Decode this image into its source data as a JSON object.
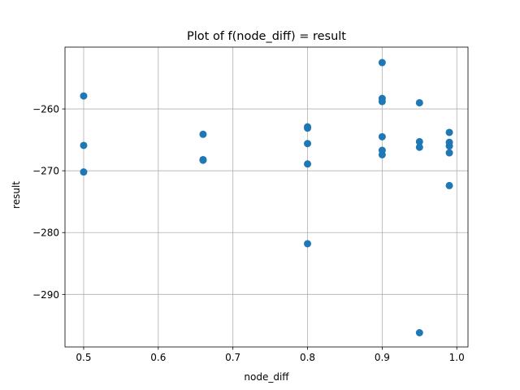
{
  "chart_data": {
    "type": "scatter",
    "title": "Plot of f(node_diff) = result",
    "xlabel": "node_diff",
    "ylabel": "result",
    "xlim": [
      0.475,
      1.015
    ],
    "ylim": [
      -298.5,
      -250.0
    ],
    "xticks": [
      0.5,
      0.6,
      0.7,
      0.8,
      0.9,
      1.0
    ],
    "xtick_labels": [
      "0.5",
      "0.6",
      "0.7",
      "0.8",
      "0.9",
      "1.0"
    ],
    "yticks": [
      -290,
      -280,
      -270,
      -260
    ],
    "ytick_labels": [
      "−290",
      "−280",
      "−270",
      "−260"
    ],
    "grid": true,
    "marker_color": "#1f77b4",
    "points": [
      {
        "x": 0.5,
        "y": -257.9
      },
      {
        "x": 0.5,
        "y": -265.9
      },
      {
        "x": 0.5,
        "y": -270.2
      },
      {
        "x": 0.66,
        "y": -264.1
      },
      {
        "x": 0.66,
        "y": -268.2
      },
      {
        "x": 0.66,
        "y": -268.3
      },
      {
        "x": 0.8,
        "y": -262.9
      },
      {
        "x": 0.8,
        "y": -263.1
      },
      {
        "x": 0.8,
        "y": -265.6
      },
      {
        "x": 0.8,
        "y": -268.9
      },
      {
        "x": 0.8,
        "y": -281.8
      },
      {
        "x": 0.9,
        "y": -252.5
      },
      {
        "x": 0.9,
        "y": -258.3
      },
      {
        "x": 0.9,
        "y": -258.8
      },
      {
        "x": 0.9,
        "y": -264.5
      },
      {
        "x": 0.9,
        "y": -266.7
      },
      {
        "x": 0.9,
        "y": -267.4
      },
      {
        "x": 0.95,
        "y": -259.0
      },
      {
        "x": 0.95,
        "y": -265.3
      },
      {
        "x": 0.95,
        "y": -266.2
      },
      {
        "x": 0.95,
        "y": -296.2
      },
      {
        "x": 0.99,
        "y": -263.8
      },
      {
        "x": 0.99,
        "y": -265.4
      },
      {
        "x": 0.99,
        "y": -266.0
      },
      {
        "x": 0.99,
        "y": -267.1
      },
      {
        "x": 0.99,
        "y": -272.4
      }
    ]
  }
}
